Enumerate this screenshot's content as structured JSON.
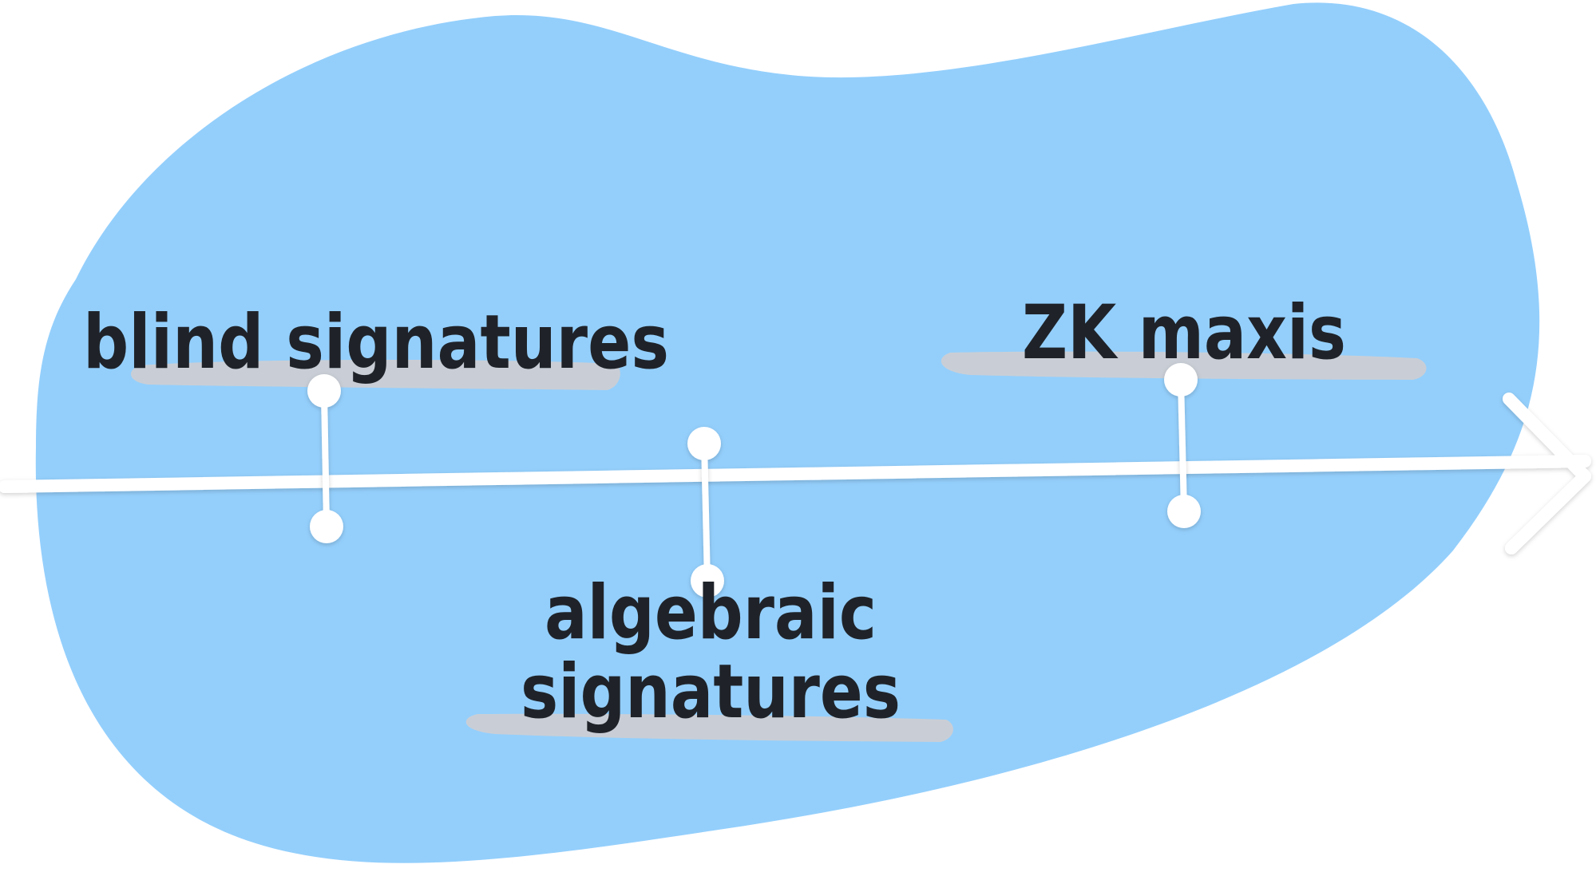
{
  "diagram": {
    "title": "",
    "colors": {
      "background": "#ffffff",
      "blob": "#94cffc",
      "highlight": "#c9ced6",
      "line": "#ffffff",
      "text": "#1f2329"
    },
    "timeline": {
      "direction": "left-to-right",
      "arrow_head": "right"
    },
    "milestones": [
      {
        "order": 1,
        "label_lines": [
          "blind signatures"
        ],
        "side": "above"
      },
      {
        "order": 2,
        "label_lines": [
          "algebraic",
          "signatures"
        ],
        "side": "below"
      },
      {
        "order": 3,
        "label_lines": [
          "ZK maxis"
        ],
        "side": "above"
      }
    ]
  }
}
